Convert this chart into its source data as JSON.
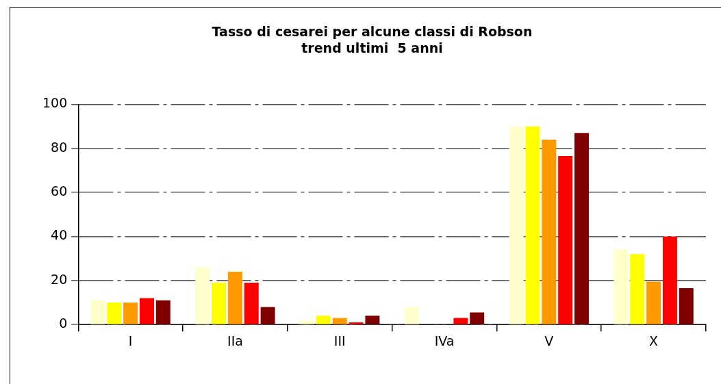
{
  "chart_data": {
    "type": "bar",
    "title": "Tasso di cesarei per alcune classi di Robson",
    "subtitle": "trend ultimi  5 anni",
    "categories": [
      "I",
      "IIa",
      "III",
      "IVa",
      "V",
      "X"
    ],
    "series": [
      {
        "color": "#ffffcc",
        "values": [
          11,
          26,
          2,
          8,
          90,
          34
        ]
      },
      {
        "color": "#ffff00",
        "values": [
          10,
          19,
          4,
          0,
          90,
          32
        ]
      },
      {
        "color": "#ff9900",
        "values": [
          10,
          24,
          3,
          0,
          84,
          19.5
        ]
      },
      {
        "color": "#ff0000",
        "values": [
          12,
          19,
          1,
          3,
          76.5,
          40
        ]
      },
      {
        "color": "#800000",
        "values": [
          11,
          8,
          4,
          5.5,
          87,
          16.5
        ]
      }
    ],
    "ylim": [
      0,
      100
    ],
    "yticks": [
      0,
      20,
      40,
      60,
      80,
      100
    ],
    "grid": "y",
    "legend": false
  }
}
